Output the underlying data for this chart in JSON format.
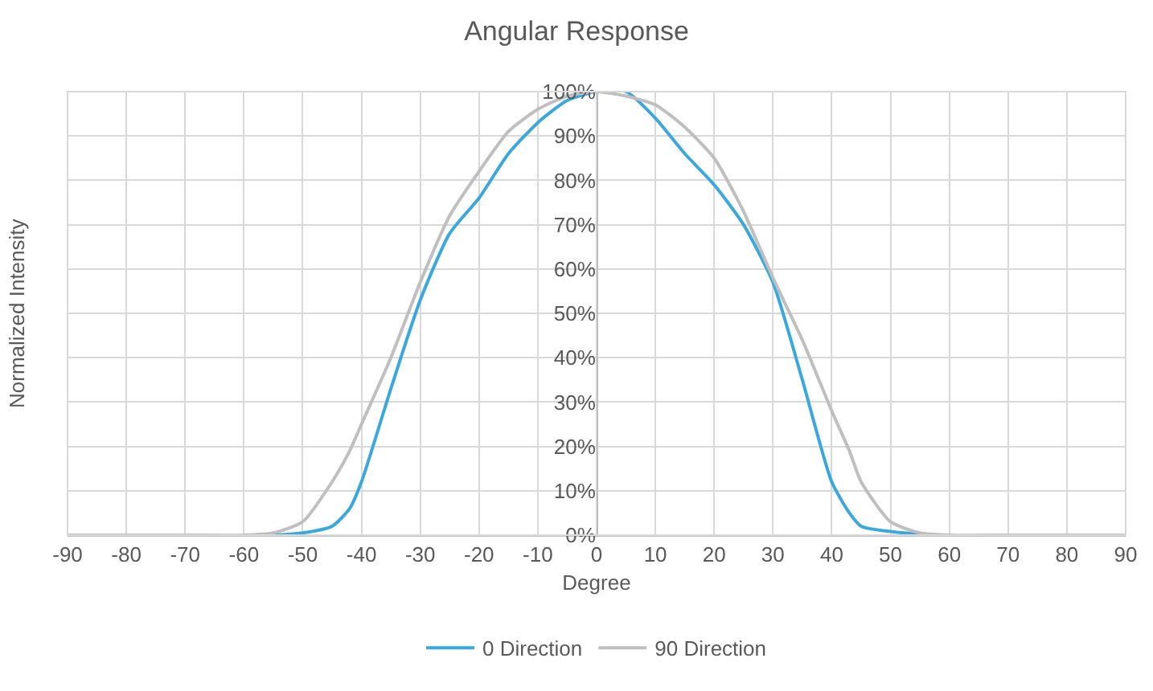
{
  "chart_data": {
    "type": "line",
    "title": "Angular Response",
    "xlabel": "Degree",
    "ylabel": "Normalized Intensity",
    "x": [
      -90,
      -80,
      -70,
      -60,
      -55,
      -50,
      -45,
      -42,
      -40,
      -35,
      -30,
      -25,
      -20,
      -15,
      -10,
      -5,
      0,
      5,
      10,
      15,
      20,
      25,
      30,
      35,
      40,
      43,
      45,
      50,
      55,
      60,
      70,
      80,
      90
    ],
    "series": [
      {
        "name": "0 Direction",
        "color": "#3aa8dc",
        "values": [
          null,
          null,
          null,
          0,
          0,
          0.5,
          2,
          6,
          12,
          33,
          53,
          68,
          76,
          86,
          93,
          98,
          100,
          100,
          94,
          86,
          79,
          70,
          57,
          35,
          12,
          5,
          2,
          0.8,
          0.2,
          0,
          null,
          null,
          null
        ]
      },
      {
        "name": "90 Direction",
        "color": "#bfbfbf",
        "values": [
          0,
          0,
          0,
          0,
          0.5,
          3,
          12,
          19,
          25,
          40,
          57,
          72,
          82,
          91,
          96,
          99,
          100,
          99,
          97,
          92,
          85,
          73,
          58,
          44,
          28,
          19,
          12,
          3,
          0.5,
          0,
          0,
          0,
          0
        ]
      }
    ],
    "xlim": [
      -90,
      90
    ],
    "xticks": [
      -90,
      -80,
      -70,
      -60,
      -50,
      -40,
      -30,
      -20,
      -10,
      0,
      10,
      20,
      30,
      40,
      50,
      60,
      70,
      80,
      90
    ],
    "ylim": [
      0,
      100
    ],
    "yticks": [
      {
        "value": 0,
        "label": "0%"
      },
      {
        "value": 10,
        "label": "10%"
      },
      {
        "value": 20,
        "label": "20%"
      },
      {
        "value": 30,
        "label": "30%"
      },
      {
        "value": 40,
        "label": "40%"
      },
      {
        "value": 50,
        "label": "50%"
      },
      {
        "value": 60,
        "label": "60%"
      },
      {
        "value": 70,
        "label": "70%"
      },
      {
        "value": 80,
        "label": "80%"
      },
      {
        "value": 90,
        "label": "90%"
      },
      {
        "value": 100,
        "label": "100%"
      }
    ],
    "grid": true,
    "legend": "bottom",
    "marker": "none",
    "line_style": "solid"
  }
}
